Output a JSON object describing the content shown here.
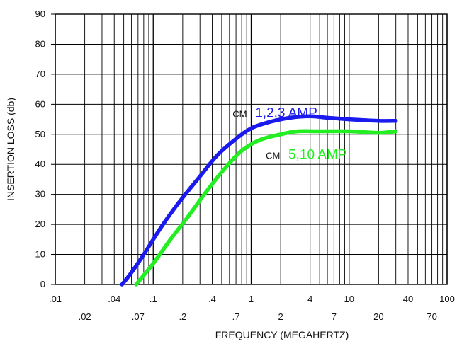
{
  "chart_data": {
    "type": "line",
    "title": "",
    "xlabel": "FREQUENCY (MEGAHERTZ)",
    "ylabel": "INSERTION LOSS (db)",
    "xscale": "log",
    "xlim": [
      0.01,
      100
    ],
    "ylim": [
      0,
      90
    ],
    "grid": true,
    "y_ticks": [
      "0",
      "10",
      "20",
      "30",
      "40",
      "50",
      "60",
      "70",
      "80",
      "90"
    ],
    "x_ticks_upper": [
      {
        "value": 0.01,
        "label": ".01"
      },
      {
        "value": 0.04,
        "label": ".04"
      },
      {
        "value": 0.1,
        "label": ".1"
      },
      {
        "value": 0.4,
        "label": ".4"
      },
      {
        "value": 1,
        "label": "1"
      },
      {
        "value": 4,
        "label": "4"
      },
      {
        "value": 10,
        "label": "10"
      },
      {
        "value": 40,
        "label": "40"
      },
      {
        "value": 100,
        "label": "100"
      }
    ],
    "x_ticks_lower": [
      {
        "value": 0.02,
        "label": ".02"
      },
      {
        "value": 0.07,
        "label": ".07"
      },
      {
        "value": 0.2,
        "label": ".2"
      },
      {
        "value": 0.7,
        "label": ".7"
      },
      {
        "value": 2,
        "label": "2"
      },
      {
        "value": 7,
        "label": "7"
      },
      {
        "value": 20,
        "label": "20"
      },
      {
        "value": 70,
        "label": "70"
      }
    ],
    "x_gridlines": [
      0.01,
      0.02,
      0.03,
      0.04,
      0.05,
      0.06,
      0.07,
      0.08,
      0.09,
      0.1,
      0.2,
      0.3,
      0.4,
      0.5,
      0.6,
      0.7,
      0.8,
      0.9,
      1,
      2,
      3,
      4,
      5,
      6,
      7,
      8,
      9,
      10,
      20,
      30,
      40,
      50,
      60,
      70,
      80,
      90,
      100
    ],
    "series": [
      {
        "name": "1,2,3 AMP",
        "prefix": "CM",
        "color": "#1a1aee",
        "points": [
          [
            0.048,
            0
          ],
          [
            0.06,
            4
          ],
          [
            0.08,
            10
          ],
          [
            0.12,
            19
          ],
          [
            0.18,
            27
          ],
          [
            0.3,
            36
          ],
          [
            0.45,
            43
          ],
          [
            0.7,
            48.5
          ],
          [
            1.0,
            52
          ],
          [
            1.5,
            54
          ],
          [
            2.5,
            55.5
          ],
          [
            4,
            56
          ],
          [
            6,
            55.5
          ],
          [
            10,
            55
          ],
          [
            20,
            54.5
          ],
          [
            30,
            54.5
          ]
        ]
      },
      {
        "name": "5,10 AMP",
        "prefix": "CM",
        "color": "#22ee22",
        "points": [
          [
            0.067,
            0
          ],
          [
            0.1,
            7
          ],
          [
            0.15,
            15
          ],
          [
            0.22,
            22
          ],
          [
            0.35,
            31
          ],
          [
            0.55,
            39
          ],
          [
            0.8,
            44.5
          ],
          [
            1.2,
            48
          ],
          [
            2,
            50
          ],
          [
            3,
            51
          ],
          [
            5,
            51
          ],
          [
            10,
            51
          ],
          [
            20,
            50.5
          ],
          [
            30,
            51
          ]
        ]
      }
    ],
    "annotations": [
      {
        "series": 0,
        "x": 1.1,
        "y": 56
      },
      {
        "series": 1,
        "x": 2.4,
        "y": 42
      }
    ]
  }
}
